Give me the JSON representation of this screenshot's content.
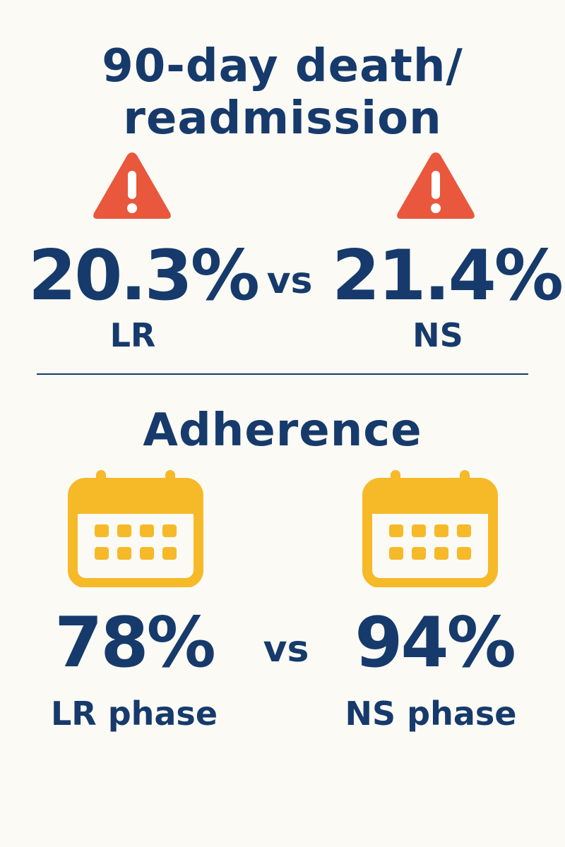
{
  "mortality": {
    "title_line1": "90-day death/",
    "title_line2": "readmission",
    "left_value": "20.3%",
    "right_value": "21.4%",
    "vs": "vs",
    "left_label": "LR",
    "right_label": "NS",
    "icon": "warning-icon"
  },
  "adherence": {
    "title": "Adherence",
    "left_value": "78%",
    "right_value": "94%",
    "vs": "vs",
    "left_label": "LR phase",
    "right_label": "NS phase",
    "icon": "calendar-icon"
  },
  "colors": {
    "text": "#163a6b",
    "warning": "#e9573c",
    "calendar": "#f6b928",
    "background": "#fbfaf5"
  }
}
